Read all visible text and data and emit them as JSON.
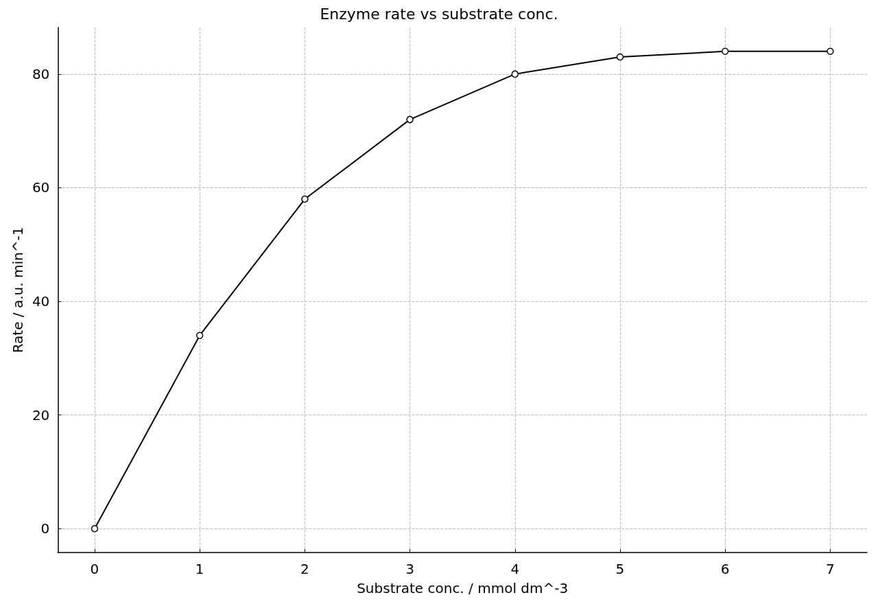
{
  "chart_data": {
    "type": "line",
    "title": "Enzyme rate vs substrate conc.",
    "xlabel": "Substrate conc. / mmol dm^-3",
    "ylabel": "Rate / a.u. min^-1",
    "x": [
      0,
      1,
      2,
      3,
      4,
      5,
      6,
      7
    ],
    "series": [
      {
        "color": "#000000",
        "values": [
          0,
          34,
          58,
          72,
          80,
          83,
          84,
          84
        ]
      }
    ],
    "xlim": [
      -0.35,
      7.35
    ],
    "xticks": [
      0,
      1,
      2,
      3,
      4,
      5,
      6,
      7
    ],
    "ylim": [
      -4.2,
      88.2
    ],
    "yticks": [
      0,
      20,
      40,
      60,
      80
    ],
    "grid": true,
    "marker": "circle",
    "line_style": "solid"
  }
}
